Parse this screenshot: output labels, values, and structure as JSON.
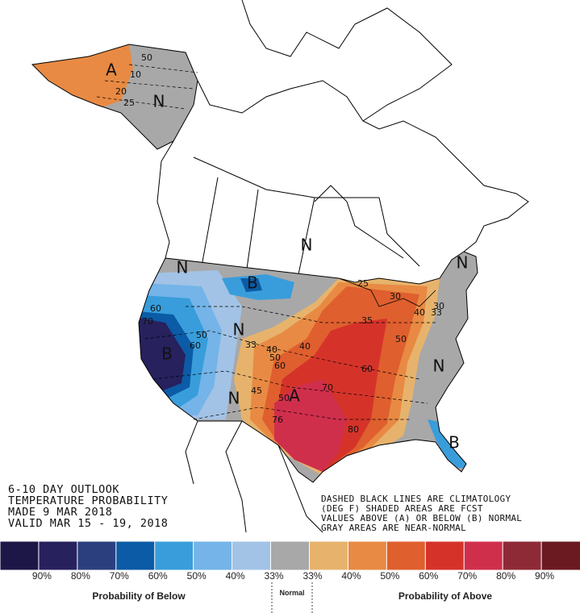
{
  "header": {
    "lines": [
      "6-10 DAY OUTLOOK",
      "TEMPERATURE PROBABILITY",
      "MADE  9 MAR 2018",
      "VALID  MAR 15 - 19, 2018"
    ]
  },
  "notes": [
    "DASHED BLACK LINES ARE CLIMATOLOGY",
    "(DEG F) SHADED AREAS ARE FCST",
    "VALUES ABOVE (A) OR BELOW (B) NORMAL",
    "GRAY AREAS ARE NEAR-NORMAL"
  ],
  "map": {
    "labels": [
      "A",
      "N",
      "N",
      "B",
      "B",
      "N",
      "N",
      "N",
      "A",
      "N",
      "N",
      "B",
      "50",
      "10",
      "20",
      "25",
      "60",
      "70",
      "50",
      "60",
      "33",
      "40",
      "50",
      "60",
      "45",
      "76",
      "70",
      "80",
      "60",
      "50",
      "40",
      "25",
      "35",
      "30",
      "33",
      "50",
      "40",
      "30"
    ]
  },
  "legend": {
    "colors": [
      "#1d1747",
      "#27215e",
      "#2b3f7f",
      "#0b5ba6",
      "#399ddb",
      "#74b4e8",
      "#a2c3e6",
      "#a8a8a8",
      "#e7b36c",
      "#e88a43",
      "#df5f2e",
      "#d5332a",
      "#d02f4c",
      "#8e2a36",
      "#6b1a22"
    ],
    "labels": [
      "90%",
      "80%",
      "70%",
      "60%",
      "50%",
      "40%",
      "33%",
      "33%",
      "40%",
      "50%",
      "60%",
      "70%",
      "80%",
      "90%"
    ],
    "below": "Probability of Below",
    "normal": "Normal",
    "above": "Probability of Above"
  }
}
